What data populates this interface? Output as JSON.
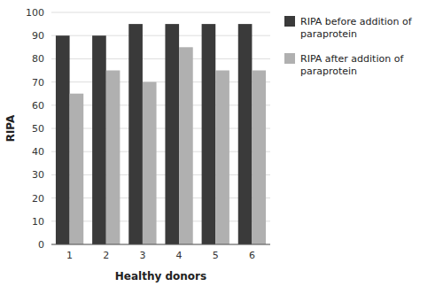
{
  "chart_data": {
    "type": "bar",
    "categories": [
      "1",
      "2",
      "3",
      "4",
      "5",
      "6"
    ],
    "series": [
      {
        "name": "RIPA before addition of\nparaprotein",
        "color": "#3a3a3a",
        "values": [
          90,
          90,
          95,
          95,
          95,
          95
        ]
      },
      {
        "name": "RIPA after addition of\nparaprotein",
        "color": "#b0b0b0",
        "values": [
          65,
          75,
          70,
          85,
          75,
          75
        ]
      }
    ],
    "xlabel": "Healthy donors",
    "ylabel": "RIPA",
    "ylim": [
      0,
      100
    ],
    "yticks": [
      0,
      10,
      20,
      30,
      40,
      50,
      60,
      70,
      80,
      90,
      100
    ],
    "grid": true,
    "legend": "right"
  }
}
